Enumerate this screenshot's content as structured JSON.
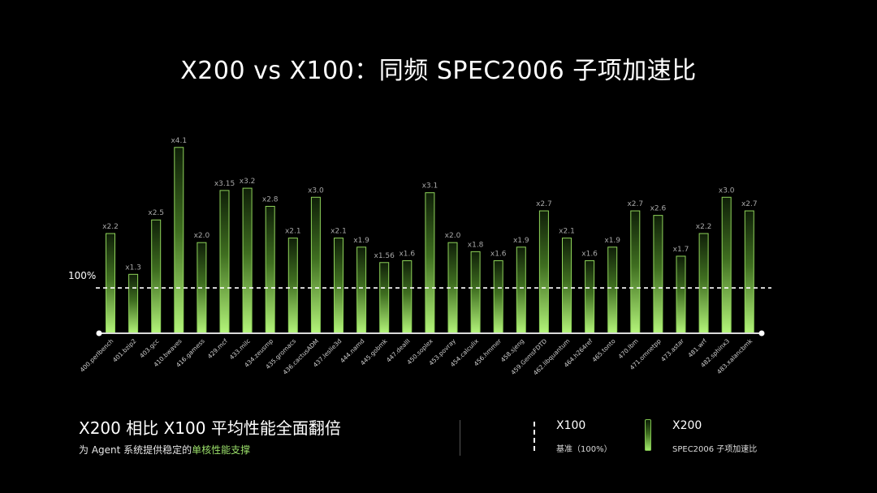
{
  "title": "X200 vs X100：同频 SPEC2006 子项加速比",
  "chart_data": {
    "type": "bar",
    "categories": [
      "400.perlbench",
      "401.bzip2",
      "403.gcc",
      "410.bwaves",
      "416.gamess",
      "429.mcf",
      "433.milc",
      "434.zeusmp",
      "435.gromacs",
      "436.cactusADM",
      "437.leslie3d",
      "444.namd",
      "445.gobmk",
      "447.dealII",
      "450.soplex",
      "453.povray",
      "454.calculix",
      "456.hmmer",
      "458.sjeng",
      "459.GemsFDTD",
      "462.libquantum",
      "464.h264ref",
      "465.tonto",
      "470.lbm",
      "471.omnetpp",
      "473.astar",
      "481.wrf",
      "482.sphinx3",
      "483.xalancbmk"
    ],
    "values": [
      2.2,
      1.3,
      2.5,
      4.1,
      2.0,
      3.15,
      3.2,
      2.8,
      2.1,
      3.0,
      2.1,
      1.9,
      1.56,
      1.6,
      3.1,
      2.0,
      1.8,
      1.6,
      1.9,
      2.7,
      2.1,
      1.6,
      1.9,
      2.7,
      2.6,
      1.7,
      2.2,
      3.0,
      2.7
    ],
    "labels": [
      "x2.2",
      "x1.3",
      "x2.5",
      "x4.1",
      "x2.0",
      "x3.15",
      "x3.2",
      "x2.8",
      "x2.1",
      "x3.0",
      "x2.1",
      "x1.9",
      "x1.56",
      "x1.6",
      "x3.1",
      "x2.0",
      "x1.8",
      "x1.6",
      "x1.9",
      "x2.7",
      "x2.1",
      "x1.6",
      "x1.9",
      "x2.7",
      "x2.6",
      "x1.7",
      "x2.2",
      "x3.0",
      "x2.7"
    ],
    "baseline": 1.0,
    "baseline_label": "100%",
    "ylim": [
      0,
      4.4
    ],
    "colors": {
      "bar_top": "#0f1f08",
      "bar_mid": "#3f6e20",
      "bar_bottom": "#b4f57a",
      "bar_edge": "#8fd35a",
      "label": "#a8a8a8",
      "axis": "#d9d9d9"
    }
  },
  "footer": {
    "headline": "X200 相比 X100 平均性能全面翻倍",
    "sub_prefix": "为 Agent 系统提供稳定的",
    "sub_highlight": "单核性能支撑"
  },
  "legend": {
    "x100_title": "X100",
    "x100_sub": "基准（100%）",
    "x200_title": "X200",
    "x200_sub": "SPEC2006 子项加速比"
  }
}
